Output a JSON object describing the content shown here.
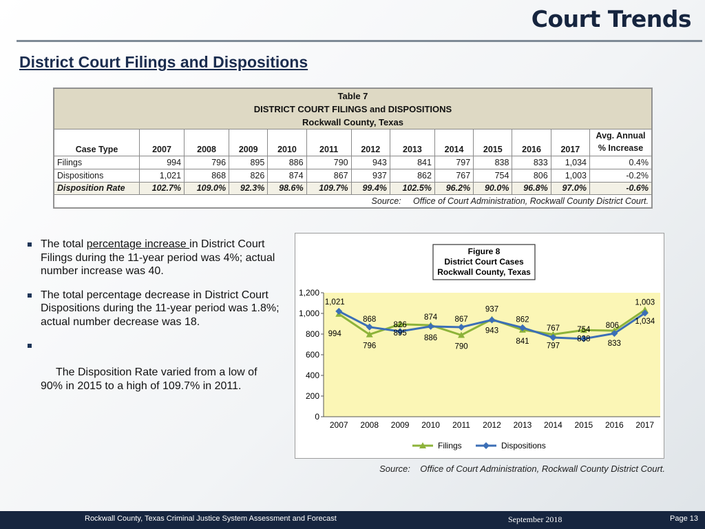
{
  "slide": {
    "title": "Court Trends",
    "subtitle": "District Court Filings and Dispositions"
  },
  "table": {
    "title_lines": [
      "Table 7",
      "DISTRICT COURT FILINGS and DISPOSITIONS",
      "Rockwall County, Texas"
    ],
    "headers": [
      "Case Type",
      "2007",
      "2008",
      "2009",
      "2010",
      "2011",
      "2012",
      "2013",
      "2014",
      "2015",
      "2016",
      "2017"
    ],
    "avg_header_line1": "Avg. Annual",
    "avg_header_line2": "% Increase",
    "rows": [
      {
        "label": "Filings",
        "values": [
          "994",
          "796",
          "895",
          "886",
          "790",
          "943",
          "841",
          "797",
          "838",
          "833",
          "1,034"
        ],
        "avg": "0.4%"
      },
      {
        "label": "Dispositions",
        "values": [
          "1,021",
          "868",
          "826",
          "874",
          "867",
          "937",
          "862",
          "767",
          "754",
          "806",
          "1,003"
        ],
        "avg": "-0.2%"
      },
      {
        "label": "Disposition Rate",
        "values": [
          "102.7%",
          "109.0%",
          "92.3%",
          "98.6%",
          "109.7%",
          "99.4%",
          "102.5%",
          "96.2%",
          "90.0%",
          "96.8%",
          "97.0%"
        ],
        "avg": "-0.6%"
      }
    ],
    "source": "Source:     Office of Court Administration, Rockwall County District Court."
  },
  "bullets": [
    {
      "pre": "The total ",
      "underlined": "percentage increase ",
      "post": "in District Court Filings during the 11-year period was 4%; actual number increase was 40."
    },
    {
      "pre": "The total percentage decrease in District Court Dispositions during the 11-year period was 1.8%; actual number decrease was 18.",
      "underlined": "",
      "post": ""
    },
    {
      "pre": " The Disposition Rate varied from a low of 90% in 2015 to a high of 109.7% in 2011.",
      "underlined": "",
      "post": ""
    }
  ],
  "chart_data": {
    "type": "line",
    "title": "Figure 8",
    "subtitle_lines": [
      "District Court Cases",
      "Rockwall County, Texas"
    ],
    "x": [
      "2007",
      "2008",
      "2009",
      "2010",
      "2011",
      "2012",
      "2013",
      "2014",
      "2015",
      "2016",
      "2017"
    ],
    "yticks": [
      "0",
      "200",
      "400",
      "600",
      "800",
      "1,000",
      "1,200"
    ],
    "ylim": [
      0,
      1200
    ],
    "grid": false,
    "legend_position": "bottom",
    "plot_background": "#fbf6b6",
    "series": [
      {
        "name": "Filings",
        "color": "#8db33a",
        "marker": "triangle",
        "values": [
          994,
          796,
          895,
          886,
          790,
          943,
          841,
          797,
          838,
          833,
          1034
        ],
        "labels": [
          "994",
          "796",
          "895",
          "886",
          "790",
          "943",
          "841",
          "797",
          "838",
          "833",
          "1,034"
        ]
      },
      {
        "name": "Dispositions",
        "color": "#3c6fb6",
        "marker": "diamond",
        "values": [
          1021,
          868,
          826,
          874,
          867,
          937,
          862,
          767,
          754,
          806,
          1003
        ],
        "labels": [
          "1,021",
          "868",
          "826",
          "874",
          "867",
          "937",
          "862",
          "767",
          "754",
          "806",
          "1,003"
        ]
      }
    ]
  },
  "chart_source": "Source:    Office of Court Administration, Rockwall County District Court.",
  "footer": {
    "left": "Rockwall County, Texas Criminal Justice System Assessment and Forecast",
    "date": "September 2018",
    "page": "Page 13"
  }
}
